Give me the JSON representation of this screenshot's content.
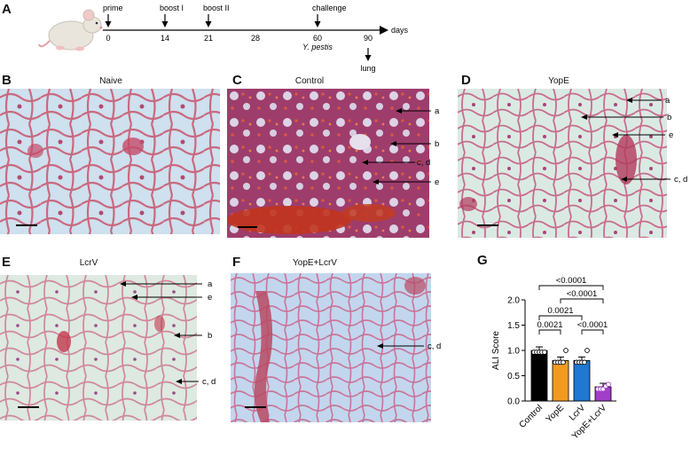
{
  "panels": {
    "A": {
      "letter": "A",
      "events": [
        {
          "label": "prime",
          "day": "0"
        },
        {
          "label": "boost I",
          "day": "14"
        },
        {
          "label": "boost II",
          "day": "21"
        },
        {
          "label": "challenge",
          "day": "60"
        }
      ],
      "plain_days": [
        "28",
        "90"
      ],
      "axis_unit": "days",
      "pathogen": "Y. pestis",
      "endpoint": "lung"
    },
    "B": {
      "letter": "B",
      "title": "Naive",
      "tint": "#c9d9ea"
    },
    "C": {
      "letter": "C",
      "title": "Control",
      "tint": "#b4507a",
      "annotations": [
        "a",
        "b",
        "c, d",
        "e"
      ]
    },
    "D": {
      "letter": "D",
      "title": "YopE",
      "tint": "#d7e6e0",
      "annotations": [
        "a",
        "b",
        "e",
        "c, d"
      ]
    },
    "E": {
      "letter": "E",
      "title": "LcrV",
      "tint": "#d9e6df",
      "annotations": [
        "a",
        "e",
        "b",
        "c, d"
      ]
    },
    "F": {
      "letter": "F",
      "title": "YopE+LcrV",
      "tint": "#bcd0ea",
      "annotations": [
        "c, d"
      ]
    },
    "G": {
      "letter": "G"
    }
  },
  "chart_data": {
    "type": "bar",
    "categories": [
      "Control",
      "YopE",
      "LcrV",
      "YopE+LcrV"
    ],
    "values": [
      1.0,
      0.8,
      0.8,
      0.28
    ],
    "points": [
      [
        1.0,
        1.0,
        1.0,
        1.0,
        1.0
      ],
      [
        0.8,
        0.8,
        0.8,
        0.8,
        1.0
      ],
      [
        0.8,
        0.8,
        0.8,
        0.8,
        1.0
      ],
      [
        0.27,
        0.27,
        0.27,
        0.33,
        0.33
      ]
    ],
    "colors": [
      "#000000",
      "#f39a1e",
      "#1f78d1",
      "#a23ec9"
    ],
    "ylabel": "ALI Score",
    "ylim": [
      0,
      2.0
    ],
    "yticks": [
      "0.0",
      "0.5",
      "1.0",
      "1.5",
      "2.0"
    ],
    "comparisons": [
      {
        "from": 0,
        "to": 3,
        "p": "<0.0001"
      },
      {
        "from": 1,
        "to": 3,
        "p": "<0.0001"
      },
      {
        "from": 0,
        "to": 2,
        "p": "0.0021"
      },
      {
        "from": 0,
        "to": 1,
        "p": "0.0021"
      },
      {
        "from": 2,
        "to": 3,
        "p": "<0.0001"
      }
    ]
  }
}
